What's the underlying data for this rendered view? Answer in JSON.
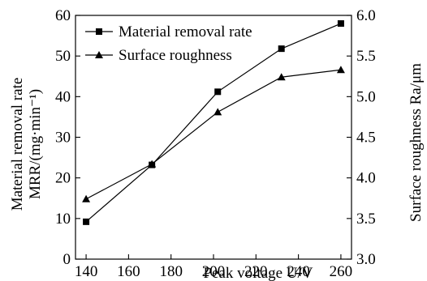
{
  "chart_data": {
    "type": "line",
    "title": "",
    "x": [
      140,
      171,
      202,
      232,
      260
    ],
    "xlabel": "Peak voltage U/V",
    "xlim": [
      135,
      265
    ],
    "xticks": [
      140,
      160,
      180,
      200,
      220,
      240,
      260
    ],
    "ylabel_left_line1": "Material removal rate",
    "ylabel_left_line2": "MRR/(mg·min⁻¹)",
    "ylim_left": [
      0,
      60
    ],
    "yticks_left": [
      0,
      10,
      20,
      30,
      40,
      50,
      60
    ],
    "ylabel_right": "Surface roughness Ra/μm",
    "ylim_right": [
      3.0,
      6.0
    ],
    "yticks_right": [
      "3.0",
      "3.5",
      "4.0",
      "4.5",
      "5.0",
      "5.5",
      "6.0"
    ],
    "grid": false,
    "legend_position": "top-left",
    "series": [
      {
        "name": "Material removal rate",
        "axis": "left",
        "marker": "square",
        "color": "#000000",
        "values": [
          9.2,
          23.2,
          41.2,
          51.8,
          58.0
        ]
      },
      {
        "name": "Surface roughness",
        "axis": "right",
        "marker": "triangle",
        "color": "#000000",
        "values": [
          3.74,
          4.17,
          4.81,
          5.24,
          5.33
        ]
      }
    ]
  }
}
